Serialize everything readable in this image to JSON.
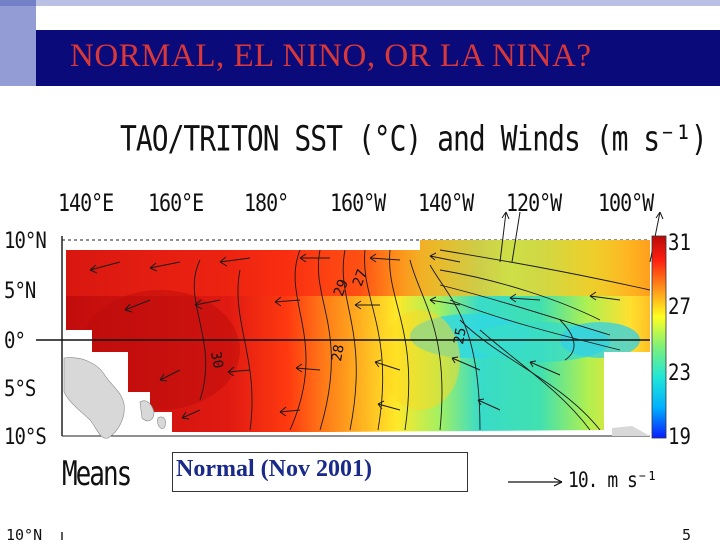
{
  "slide": {
    "title": "NORMAL, EL NINO, OR LA NINA?",
    "status_label": "Normal (Nov 2001)"
  },
  "map": {
    "title": "TAO/TRITON SST (°C) and Winds (m s⁻¹)",
    "longitude_labels": [
      "140°E",
      "160°E",
      "180°",
      "160°W",
      "140°W",
      "120°W",
      "100°W"
    ],
    "latitude_labels": [
      "10°N",
      "5°N",
      "0°",
      "5°S",
      "10°S"
    ],
    "colorbar": {
      "labels": [
        "31",
        "27",
        "23",
        "19"
      ],
      "range_c": [
        19,
        31
      ],
      "colors": [
        "#0a1cff",
        "#00b0ff",
        "#20e6d8",
        "#7cf07a",
        "#ffff20",
        "#ffb020",
        "#ff5a10",
        "#e81010",
        "#b80a0a"
      ]
    },
    "contour_labels": [
      "29",
      "27",
      "30",
      "28",
      "25"
    ],
    "means_label": "Means",
    "wind_scale_label": "10. m s⁻¹",
    "palette": {
      "warm_pool": "#e01a12",
      "cold_tongue": "#2ad4e0",
      "land": "#d8d8d8"
    }
  },
  "bottom_fragment": {
    "left": "10°N",
    "right": "5"
  }
}
